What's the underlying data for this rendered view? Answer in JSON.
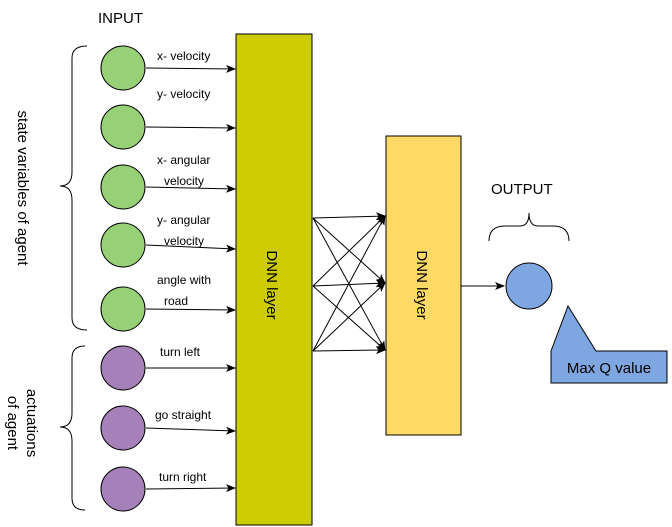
{
  "headers": {
    "input": "INPUT",
    "output": "OUTPUT"
  },
  "groups": {
    "state": "state variables of agent",
    "actuations_line1": "actuations",
    "actuations_line2": "of agent"
  },
  "inputs": [
    {
      "lines": [
        "x- velocity"
      ],
      "color": "#97d077"
    },
    {
      "lines": [
        "y- velocity"
      ],
      "color": "#97d077"
    },
    {
      "lines": [
        "x- angular",
        "velocity"
      ],
      "color": "#97d077"
    },
    {
      "lines": [
        "y- angular",
        "velocity"
      ],
      "color": "#97d077"
    },
    {
      "lines": [
        "angle with",
        "road"
      ],
      "color": "#97d077"
    },
    {
      "lines": [
        "turn left"
      ],
      "color": "#a680b8"
    },
    {
      "lines": [
        "go straight"
      ],
      "color": "#a680b8"
    },
    {
      "lines": [
        "turn right"
      ],
      "color": "#a680b8"
    }
  ],
  "layers": [
    {
      "label": "DNN layer",
      "color": "#cccc00"
    },
    {
      "label": "DNN layer",
      "color": "#ffd966"
    }
  ],
  "output": {
    "color": "#7ea6e0",
    "callout": "Max Q value",
    "callout_color": "#7ea6e0"
  }
}
